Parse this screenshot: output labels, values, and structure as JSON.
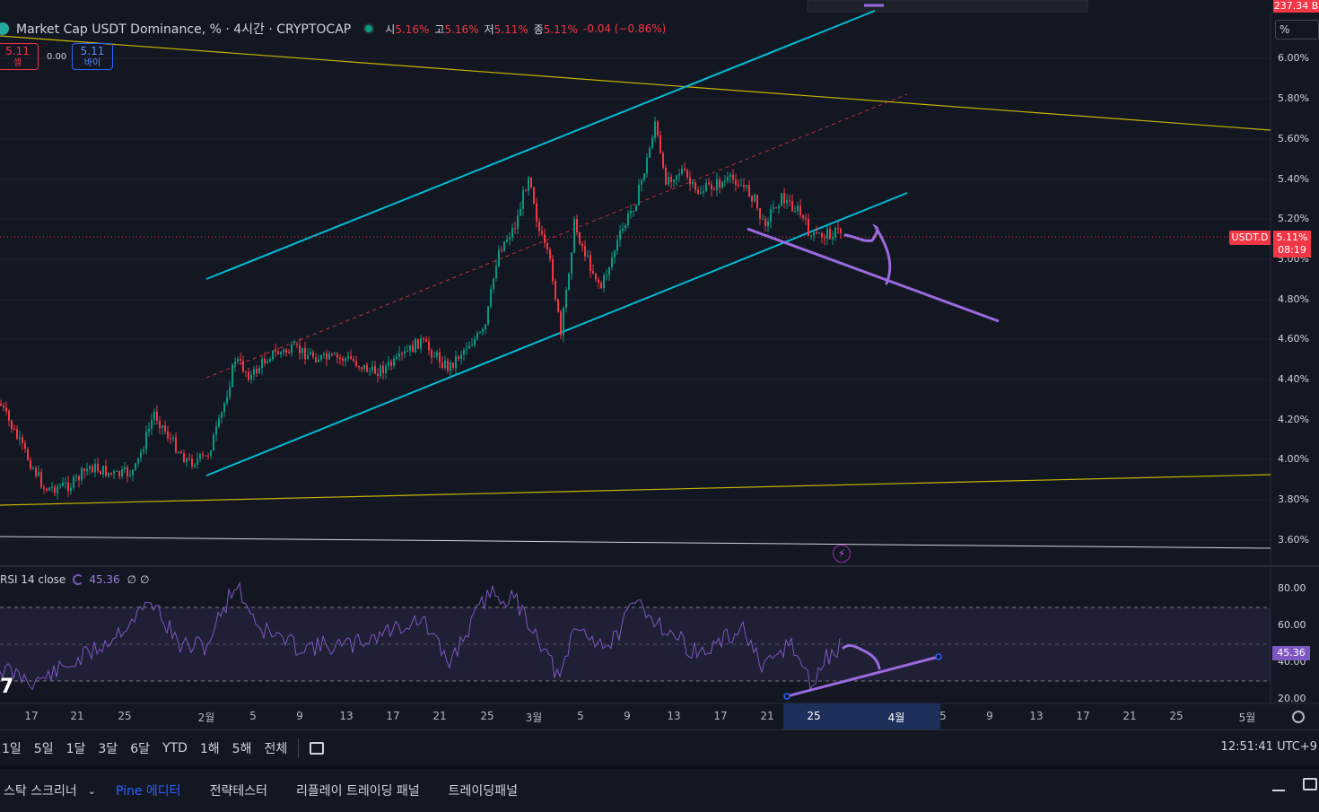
{
  "header": {
    "title": "Market Cap USDT Dominance, % · 4시간 · CRYPTOCAP",
    "ohlc": {
      "o_label": "시",
      "o_value": "5.16%",
      "h_label": "고",
      "h_value": "5.16%",
      "l_label": "저",
      "l_value": "5.11%",
      "c_label": "종",
      "c_value": "5.11%",
      "change": "-0.04 (−0.86%)"
    }
  },
  "trade": {
    "sell_price": "5.11",
    "sell_label": "셀",
    "spread": "0.00",
    "buy_price": "5.11",
    "buy_label": "바이"
  },
  "price_axis": {
    "unit_button": "%",
    "top_badge": "237.34 B",
    "labels": [
      "6.00%",
      "5.80%",
      "5.60%",
      "5.40%",
      "5.20%",
      "5.00%",
      "4.80%",
      "4.60%",
      "4.40%",
      "4.20%",
      "4.00%",
      "3.80%",
      "3.60%"
    ],
    "ticker_label": "USDT.D",
    "last_price": "5.11%",
    "countdown": "08:19"
  },
  "rsi": {
    "label": "RSI 14 close",
    "value": "45.36",
    "extra": "∅ ∅",
    "axis_labels": [
      "80.00",
      "60.00",
      "40.00",
      "20.00"
    ],
    "badge": "45.36"
  },
  "time_axis": {
    "labels": [
      "17",
      "21",
      "25",
      "2월",
      "5",
      "9",
      "13",
      "17",
      "21",
      "25",
      "3월",
      "5",
      "9",
      "13",
      "17",
      "21",
      "25",
      "4월",
      "5",
      "9",
      "13",
      "17",
      "21",
      "25",
      "5월"
    ]
  },
  "range_buttons": [
    "1일",
    "5일",
    "1달",
    "3달",
    "6달",
    "YTD",
    "1해",
    "5해",
    "전체"
  ],
  "clock": "12:51:41 UTC+9",
  "bottom_tabs": [
    "스탁 스크리너",
    "Pine 에디터",
    "전략테스터",
    "리플레이 트레이딩 패널",
    "트레이딩패널"
  ],
  "colors": {
    "background": "#131722",
    "channel": "#00bcd4",
    "yellow_trend": "#c8b400",
    "drawing": "#9c6ade",
    "up": "#089981",
    "down": "#f23645",
    "rsi_line": "#7e57c2"
  },
  "icons": [
    "chart-logo-icon",
    "market-status-icon",
    "rsi-cycle-icon",
    "calendar-icon",
    "settings-icon",
    "minimize-icon",
    "maximize-icon",
    "lightning-icon"
  ]
}
